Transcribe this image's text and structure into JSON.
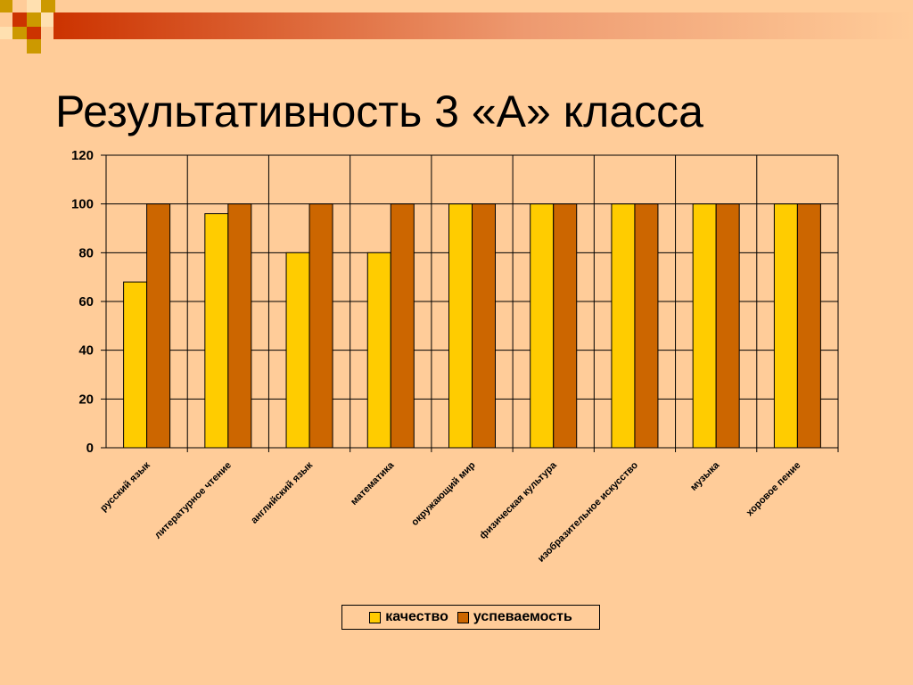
{
  "slide": {
    "title": "Результативность 3 «А» класса"
  },
  "colors": {
    "background": "#FFCC99",
    "series_quality": "#FFCC00",
    "series_progress": "#CC6600",
    "decor_red": "#CC3300",
    "decor_gold": "#CC9900"
  },
  "chart_data": {
    "type": "bar",
    "categories": [
      "русский язык",
      "литературное чтение",
      "английский язык",
      "математика",
      "окружающий мир",
      "физическая культура",
      "изобразительное искусство",
      "музыка",
      "хоровое пение"
    ],
    "series": [
      {
        "name": "качество",
        "values": [
          68,
          96,
          80,
          80,
          100,
          100,
          100,
          100,
          100
        ]
      },
      {
        "name": "успеваемость",
        "values": [
          100,
          100,
          100,
          100,
          100,
          100,
          100,
          100,
          100
        ]
      }
    ],
    "ylim": [
      0,
      120
    ],
    "yticks": [
      0,
      20,
      40,
      60,
      80,
      100,
      120
    ],
    "grid": true,
    "legend_position": "bottom"
  }
}
